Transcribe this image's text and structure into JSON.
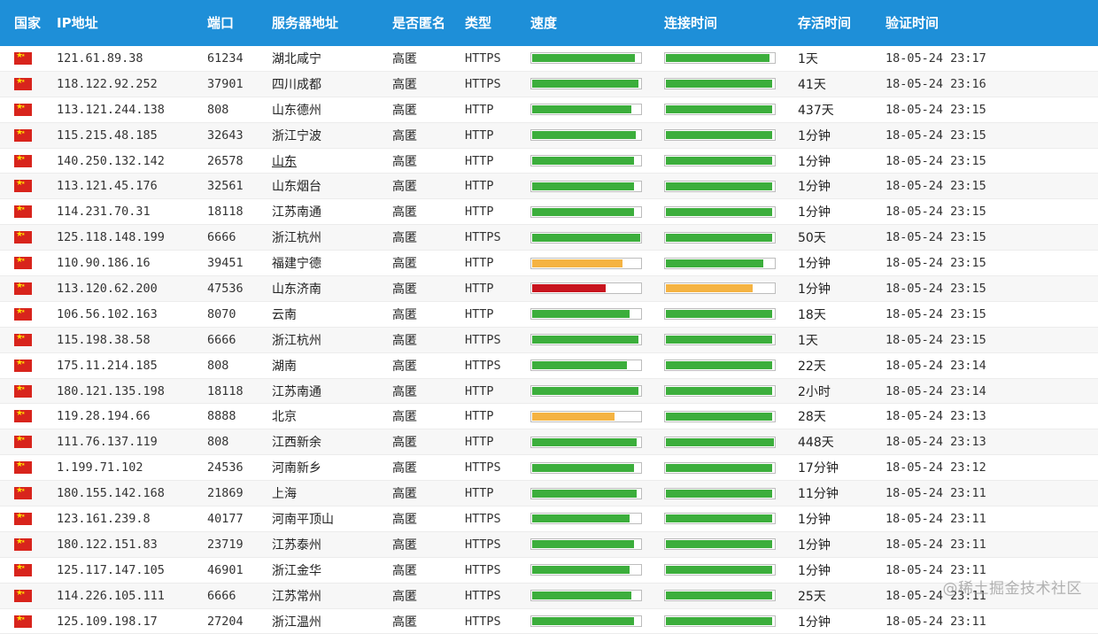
{
  "headers": {
    "country": "国家",
    "ip": "IP地址",
    "port": "端口",
    "server": "服务器地址",
    "anonymous": "是否匿名",
    "type": "类型",
    "speed": "速度",
    "connect": "连接时间",
    "alive": "存活时间",
    "verified": "验证时间"
  },
  "colors": {
    "header_bg": "#1e8fd8",
    "good": "#3cae3c",
    "medium": "#f5b342",
    "bad": "#c8141e"
  },
  "icons": {
    "flag": "china-flag-icon"
  },
  "rows": [
    {
      "ip": "121.61.89.38",
      "port": "61234",
      "loc": "湖北咸宁",
      "anon": "高匿",
      "type": "HTTPS",
      "speed": 0.95,
      "speed_level": "good",
      "conn": 0.96,
      "conn_level": "good",
      "alive": "1天",
      "time": "18-05-24 23:17"
    },
    {
      "ip": "118.122.92.252",
      "port": "37901",
      "loc": "四川成都",
      "anon": "高匿",
      "type": "HTTPS",
      "speed": 0.98,
      "speed_level": "good",
      "conn": 0.98,
      "conn_level": "good",
      "alive": "41天",
      "time": "18-05-24 23:16"
    },
    {
      "ip": "113.121.244.138",
      "port": "808",
      "loc": "山东德州",
      "anon": "高匿",
      "type": "HTTP",
      "speed": 0.92,
      "speed_level": "good",
      "conn": 0.98,
      "conn_level": "good",
      "alive": "437天",
      "time": "18-05-24 23:15"
    },
    {
      "ip": "115.215.48.185",
      "port": "32643",
      "loc": "浙江宁波",
      "anon": "高匿",
      "type": "HTTP",
      "speed": 0.96,
      "speed_level": "good",
      "conn": 0.98,
      "conn_level": "good",
      "alive": "1分钟",
      "time": "18-05-24 23:15"
    },
    {
      "ip": "140.250.132.142",
      "port": "26578",
      "loc": "山东",
      "anon": "高匿",
      "type": "HTTP",
      "speed": 0.94,
      "speed_level": "good",
      "conn": 0.98,
      "conn_level": "good",
      "alive": "1分钟",
      "time": "18-05-24 23:15"
    },
    {
      "ip": "113.121.45.176",
      "port": "32561",
      "loc": "山东烟台",
      "anon": "高匿",
      "type": "HTTP",
      "speed": 0.94,
      "speed_level": "good",
      "conn": 0.98,
      "conn_level": "good",
      "alive": "1分钟",
      "time": "18-05-24 23:15"
    },
    {
      "ip": "114.231.70.31",
      "port": "18118",
      "loc": "江苏南通",
      "anon": "高匿",
      "type": "HTTP",
      "speed": 0.94,
      "speed_level": "good",
      "conn": 0.98,
      "conn_level": "good",
      "alive": "1分钟",
      "time": "18-05-24 23:15"
    },
    {
      "ip": "125.118.148.199",
      "port": "6666",
      "loc": "浙江杭州",
      "anon": "高匿",
      "type": "HTTPS",
      "speed": 1.0,
      "speed_level": "good",
      "conn": 0.98,
      "conn_level": "good",
      "alive": "50天",
      "time": "18-05-24 23:15"
    },
    {
      "ip": "110.90.186.16",
      "port": "39451",
      "loc": "福建宁德",
      "anon": "高匿",
      "type": "HTTP",
      "speed": 0.84,
      "speed_level": "medium",
      "conn": 0.9,
      "conn_level": "good",
      "alive": "1分钟",
      "time": "18-05-24 23:15"
    },
    {
      "ip": "113.120.62.200",
      "port": "47536",
      "loc": "山东济南",
      "anon": "高匿",
      "type": "HTTP",
      "speed": 0.68,
      "speed_level": "bad",
      "conn": 0.8,
      "conn_level": "medium",
      "alive": "1分钟",
      "time": "18-05-24 23:15"
    },
    {
      "ip": "106.56.102.163",
      "port": "8070",
      "loc": "云南",
      "anon": "高匿",
      "type": "HTTP",
      "speed": 0.9,
      "speed_level": "good",
      "conn": 0.98,
      "conn_level": "good",
      "alive": "18天",
      "time": "18-05-24 23:15"
    },
    {
      "ip": "115.198.38.58",
      "port": "6666",
      "loc": "浙江杭州",
      "anon": "高匿",
      "type": "HTTPS",
      "speed": 0.98,
      "speed_level": "good",
      "conn": 0.98,
      "conn_level": "good",
      "alive": "1天",
      "time": "18-05-24 23:15"
    },
    {
      "ip": "175.11.214.185",
      "port": "808",
      "loc": "湖南",
      "anon": "高匿",
      "type": "HTTPS",
      "speed": 0.88,
      "speed_level": "good",
      "conn": 0.98,
      "conn_level": "good",
      "alive": "22天",
      "time": "18-05-24 23:14"
    },
    {
      "ip": "180.121.135.198",
      "port": "18118",
      "loc": "江苏南通",
      "anon": "高匿",
      "type": "HTTP",
      "speed": 0.98,
      "speed_level": "good",
      "conn": 0.98,
      "conn_level": "good",
      "alive": "2小时",
      "time": "18-05-24 23:14"
    },
    {
      "ip": "119.28.194.66",
      "port": "8888",
      "loc": "北京",
      "anon": "高匿",
      "type": "HTTP",
      "speed": 0.76,
      "speed_level": "medium",
      "conn": 0.98,
      "conn_level": "good",
      "alive": "28天",
      "time": "18-05-24 23:13"
    },
    {
      "ip": "111.76.137.119",
      "port": "808",
      "loc": "江西新余",
      "anon": "高匿",
      "type": "HTTP",
      "speed": 0.97,
      "speed_level": "good",
      "conn": 1.0,
      "conn_level": "good",
      "alive": "448天",
      "time": "18-05-24 23:13"
    },
    {
      "ip": "1.199.71.102",
      "port": "24536",
      "loc": "河南新乡",
      "anon": "高匿",
      "type": "HTTPS",
      "speed": 0.94,
      "speed_level": "good",
      "conn": 0.98,
      "conn_level": "good",
      "alive": "17分钟",
      "time": "18-05-24 23:12"
    },
    {
      "ip": "180.155.142.168",
      "port": "21869",
      "loc": "上海",
      "anon": "高匿",
      "type": "HTTP",
      "speed": 0.97,
      "speed_level": "good",
      "conn": 0.98,
      "conn_level": "good",
      "alive": "11分钟",
      "time": "18-05-24 23:11"
    },
    {
      "ip": "123.161.239.8",
      "port": "40177",
      "loc": "河南平顶山",
      "anon": "高匿",
      "type": "HTTPS",
      "speed": 0.9,
      "speed_level": "good",
      "conn": 0.98,
      "conn_level": "good",
      "alive": "1分钟",
      "time": "18-05-24 23:11"
    },
    {
      "ip": "180.122.151.83",
      "port": "23719",
      "loc": "江苏泰州",
      "anon": "高匿",
      "type": "HTTPS",
      "speed": 0.94,
      "speed_level": "good",
      "conn": 0.98,
      "conn_level": "good",
      "alive": "1分钟",
      "time": "18-05-24 23:11"
    },
    {
      "ip": "125.117.147.105",
      "port": "46901",
      "loc": "浙江金华",
      "anon": "高匿",
      "type": "HTTPS",
      "speed": 0.9,
      "speed_level": "good",
      "conn": 0.98,
      "conn_level": "good",
      "alive": "1分钟",
      "time": "18-05-24 23:11"
    },
    {
      "ip": "114.226.105.111",
      "port": "6666",
      "loc": "江苏常州",
      "anon": "高匿",
      "type": "HTTPS",
      "speed": 0.92,
      "speed_level": "good",
      "conn": 0.98,
      "conn_level": "good",
      "alive": "25天",
      "time": "18-05-24 23:11"
    },
    {
      "ip": "125.109.198.17",
      "port": "27204",
      "loc": "浙江温州",
      "anon": "高匿",
      "type": "HTTPS",
      "speed": 0.94,
      "speed_level": "good",
      "conn": 0.98,
      "conn_level": "good",
      "alive": "1分钟",
      "time": "18-05-24 23:11"
    }
  ],
  "underlined_locations": [
    "山东"
  ],
  "watermark": "@稀土掘金技术社区"
}
